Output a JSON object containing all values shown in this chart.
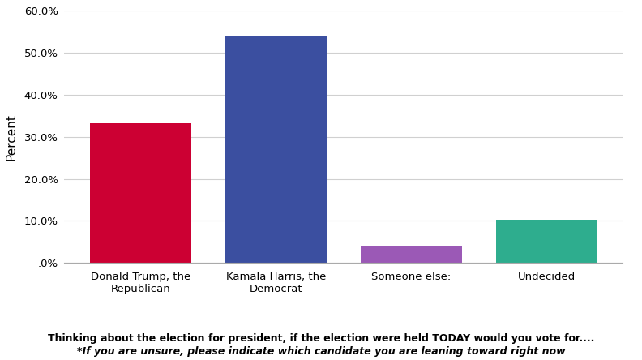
{
  "categories": [
    "Donald Trump, the\nRepublican",
    "Kamala Harris, the\nDemocrat",
    "Someone else:",
    "Undecided"
  ],
  "values": [
    33.3,
    53.8,
    3.8,
    10.3
  ],
  "bar_colors": [
    "#CC0033",
    "#3B4FA0",
    "#9B59B6",
    "#2EAD8E"
  ],
  "ylabel": "Percent",
  "ylim": [
    0,
    60
  ],
  "yticks": [
    0,
    10,
    20,
    30,
    40,
    50,
    60
  ],
  "ytick_labels": [
    ".0%",
    "10.0%",
    "20.0%",
    "30.0%",
    "40.0%",
    "50.0%",
    "60.0%"
  ],
  "footnote_line1": "Thinking about the election for president, if the election were held TODAY would you vote for....",
  "footnote_line2": "*If you are unsure, please indicate which candidate you are leaning toward right now",
  "background_color": "#ffffff",
  "grid_color": "#d0d0d0",
  "bar_width": 0.75,
  "tick_fontsize": 9.5,
  "ylabel_fontsize": 11
}
